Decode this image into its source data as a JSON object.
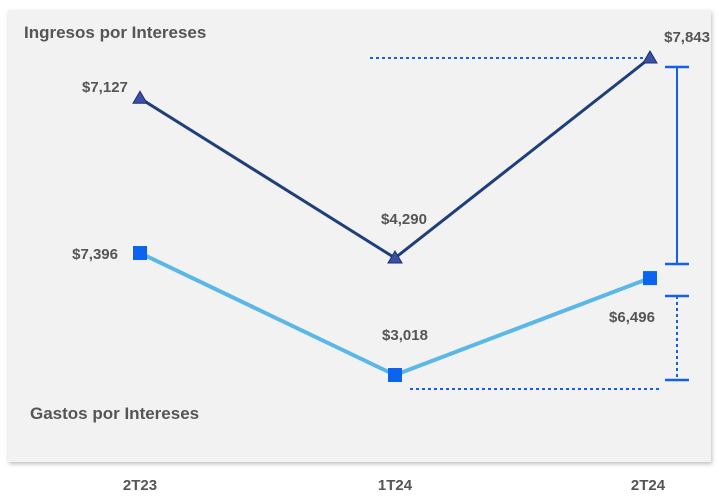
{
  "chart_data": {
    "type": "line",
    "categories": [
      "2T23",
      "1T24",
      "2T24"
    ],
    "series": [
      {
        "name": "Ingresos por Intereses",
        "values": [
          7127,
          4290,
          7843
        ],
        "value_labels": [
          "$7,127",
          "$4,290",
          "$7,843"
        ],
        "color": "#1f3f7a",
        "marker": "triangle"
      },
      {
        "name": "Gastos por Intereses",
        "values": [
          7396,
          3018,
          6496
        ],
        "value_labels": [
          "$7,396",
          "$3,018",
          "$6,496"
        ],
        "color": "#5bb8e6",
        "marker": "square",
        "marker_color": "#0a64f0"
      }
    ],
    "grid": false,
    "legend": "inline"
  }
}
